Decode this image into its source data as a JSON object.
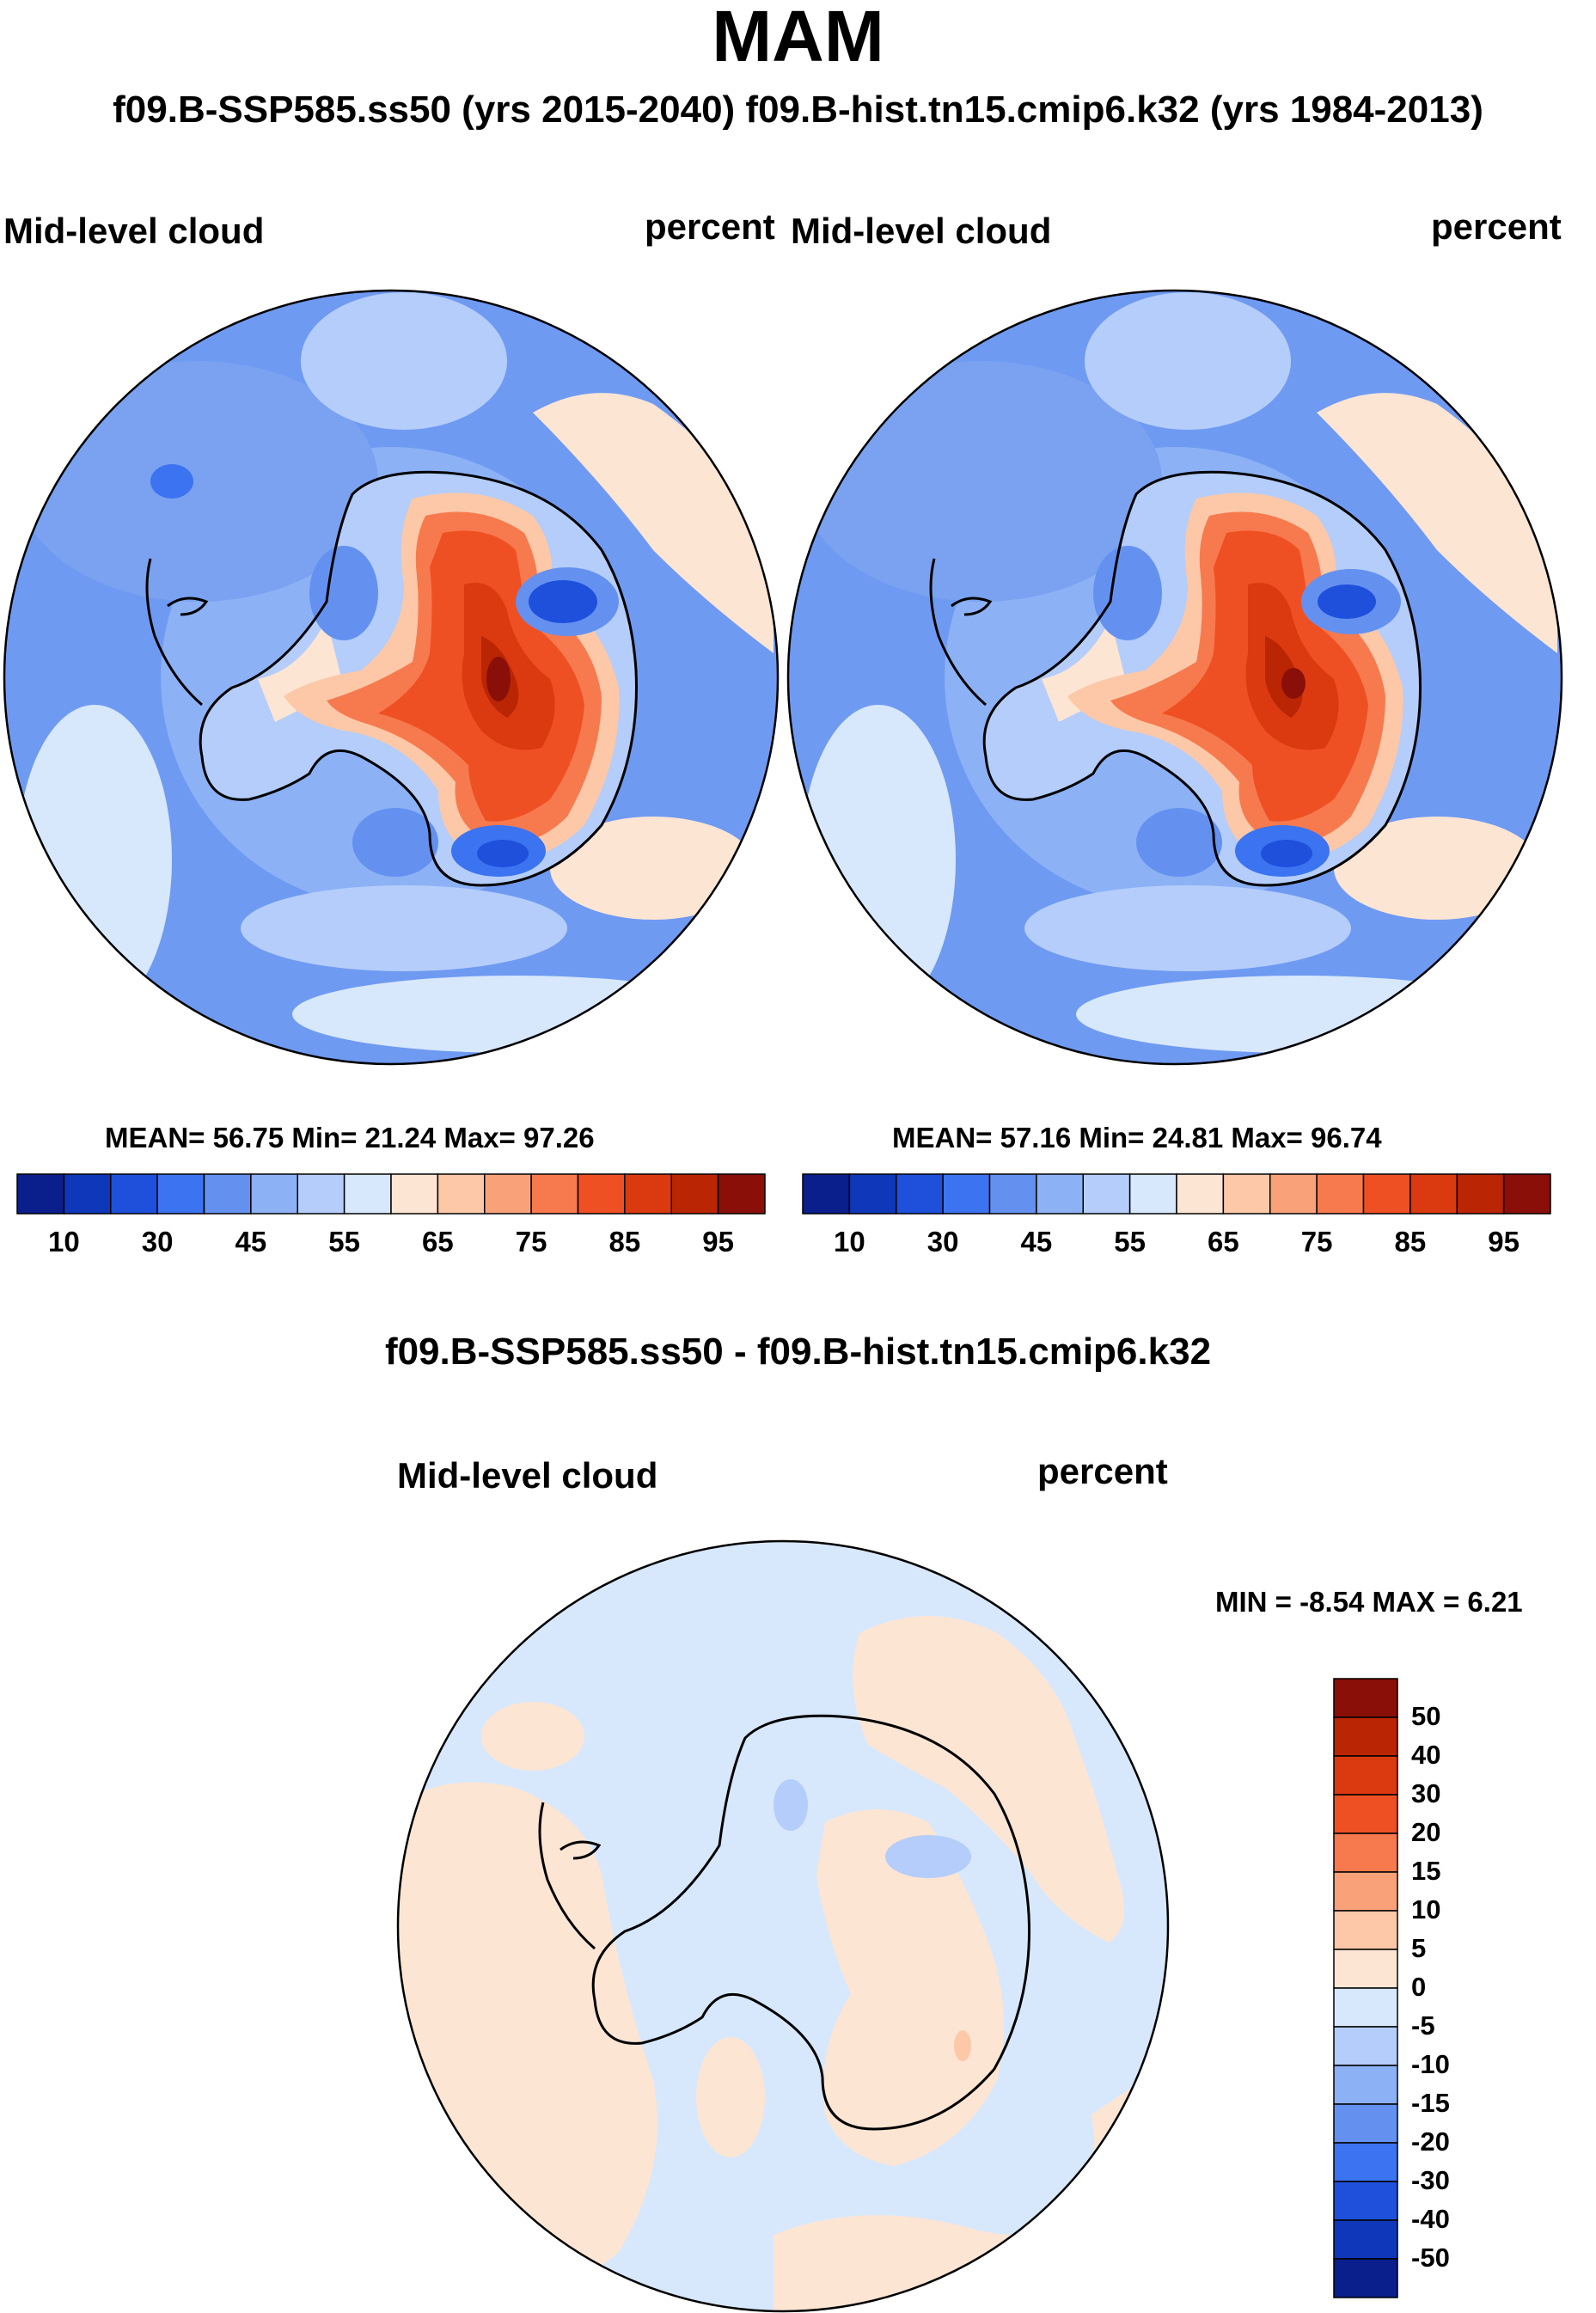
{
  "title": "MAM",
  "subtitle": "f09.B-SSP585.ss50 (yrs 2015-2040)  f09.B-hist.tn15.cmip6.k32 (yrs 1984-2013)",
  "panels": [
    {
      "variable": "Mid-level cloud",
      "units": "percent",
      "stats_label": "MEAN=  56.75  Min=  21.24  Max=  97.26",
      "mean": 56.75,
      "min": 21.24,
      "max": 97.26
    },
    {
      "variable": "Mid-level cloud",
      "units": "percent",
      "stats_label": "MEAN=  57.16  Min=  24.81  Max=  96.74",
      "mean": 57.16,
      "min": 24.81,
      "max": 96.74
    }
  ],
  "abs_colorbar": {
    "tick_labels": [
      "10",
      "30",
      "45",
      "55",
      "65",
      "75",
      "85",
      "95"
    ],
    "colors": [
      "#0a1e8c",
      "#0f37b9",
      "#1e50dc",
      "#3c73f0",
      "#6491f0",
      "#8cb1f5",
      "#b4cdfa",
      "#d7e8fc",
      "#fde5d4",
      "#fcc8a8",
      "#f9a27a",
      "#f77a4e",
      "#ee5024",
      "#db3a10",
      "#ba2504",
      "#8a0f08"
    ]
  },
  "diff_panel": {
    "title": "f09.B-SSP585.ss50 - f09.B-hist.tn15.cmip6.k32",
    "variable": "Mid-level cloud",
    "units": "percent",
    "stats_label": "MIN =  -8.54 MAX =    6.21",
    "min": -8.54,
    "max": 6.21
  },
  "diff_colorbar": {
    "tick_labels": [
      "50",
      "40",
      "30",
      "20",
      "15",
      "10",
      "5",
      "0",
      "-5",
      "-10",
      "-15",
      "-20",
      "-30",
      "-40",
      "-50"
    ],
    "colors": [
      "#8a0f08",
      "#ba2504",
      "#db3a10",
      "#ee5024",
      "#f77a4e",
      "#f9a27a",
      "#fcc8a8",
      "#fde5d4",
      "#d7e8fc",
      "#b4cdfa",
      "#8cb1f5",
      "#6491f0",
      "#3c73f0",
      "#1e50dc",
      "#0f37b9",
      "#0a1e8c"
    ]
  }
}
